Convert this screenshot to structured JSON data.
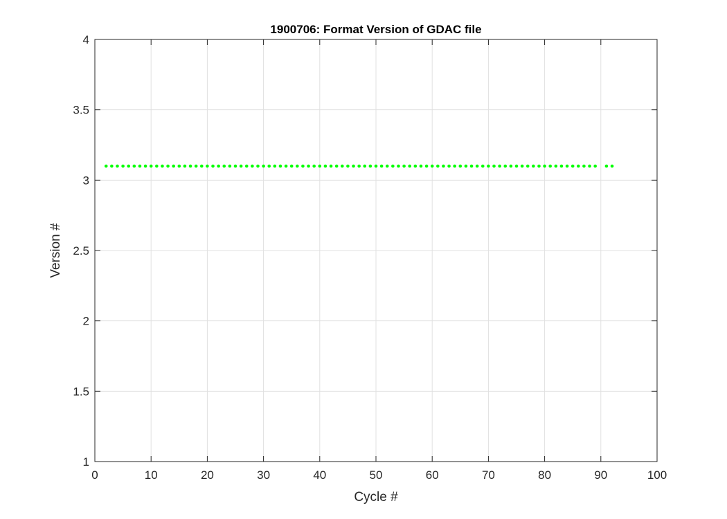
{
  "chart_data": {
    "type": "scatter",
    "title": "1900706: Format Version of GDAC file",
    "xlabel": "Cycle #",
    "ylabel": "Version #",
    "xlim": [
      0,
      100
    ],
    "ylim": [
      1,
      4
    ],
    "xticks": [
      0,
      10,
      20,
      30,
      40,
      50,
      60,
      70,
      80,
      90,
      100
    ],
    "yticks": [
      1,
      1.5,
      2,
      2.5,
      3,
      3.5,
      4
    ],
    "grid": true,
    "marker_color": "#00ff00",
    "series": [
      {
        "name": "format version",
        "x": [
          2,
          3,
          4,
          5,
          6,
          7,
          8,
          9,
          10,
          11,
          12,
          13,
          14,
          15,
          16,
          17,
          18,
          19,
          20,
          21,
          22,
          23,
          24,
          25,
          26,
          27,
          28,
          29,
          30,
          31,
          32,
          33,
          34,
          35,
          36,
          37,
          38,
          39,
          40,
          41,
          42,
          43,
          44,
          45,
          46,
          47,
          48,
          49,
          50,
          51,
          52,
          53,
          54,
          55,
          56,
          57,
          58,
          59,
          60,
          61,
          62,
          63,
          64,
          65,
          66,
          67,
          68,
          69,
          70,
          71,
          72,
          73,
          74,
          75,
          76,
          77,
          78,
          79,
          80,
          81,
          82,
          83,
          84,
          85,
          86,
          87,
          88,
          89,
          91,
          92
        ],
        "y_constant": 3.1
      }
    ]
  }
}
